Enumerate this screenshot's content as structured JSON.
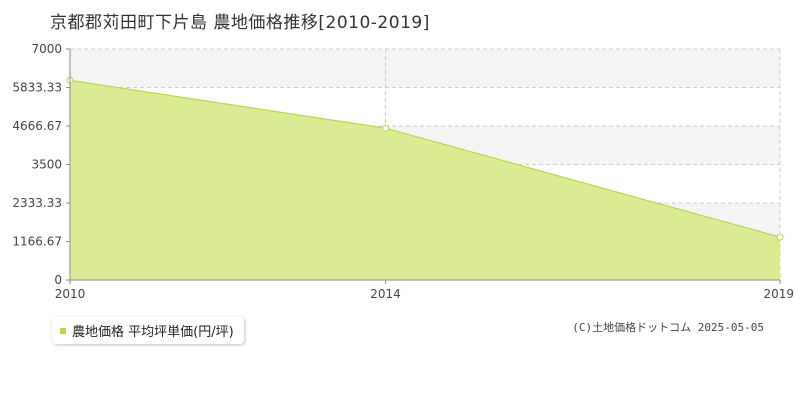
{
  "page": {
    "title": "京都郡苅田町下片島 農地価格推移[2010-2019]",
    "copyright": "(C)土地価格ドットコム 2025-05-05"
  },
  "colors": {
    "area_fill": "#dcec94",
    "line": "#b6d84a",
    "grid": "#cccccc",
    "axis": "#888888",
    "band": "#f4f4f4",
    "legend_marker": "#b6d84a"
  },
  "chart_data": {
    "type": "area",
    "title": "京都郡苅田町下片島 農地価格推移[2010-2019]",
    "x": [
      2010,
      2014,
      2019
    ],
    "xlim": [
      2010,
      2019
    ],
    "x_tick_labels": [
      "2010",
      "2014",
      "2019"
    ],
    "ylim": [
      0,
      7000
    ],
    "y_tick_labels": [
      "0",
      "1166.67",
      "2333.33",
      "3500",
      "4666.67",
      "5833.33",
      "7000"
    ],
    "y_tick_values": [
      0,
      1166.67,
      2333.33,
      3500,
      4666.67,
      5833.33,
      7000
    ],
    "grid": true,
    "legend_position": "bottom-left",
    "series": [
      {
        "name": "農地価格 平均坪単価(円/坪)",
        "values": [
          6050,
          4600,
          1300
        ]
      }
    ]
  }
}
